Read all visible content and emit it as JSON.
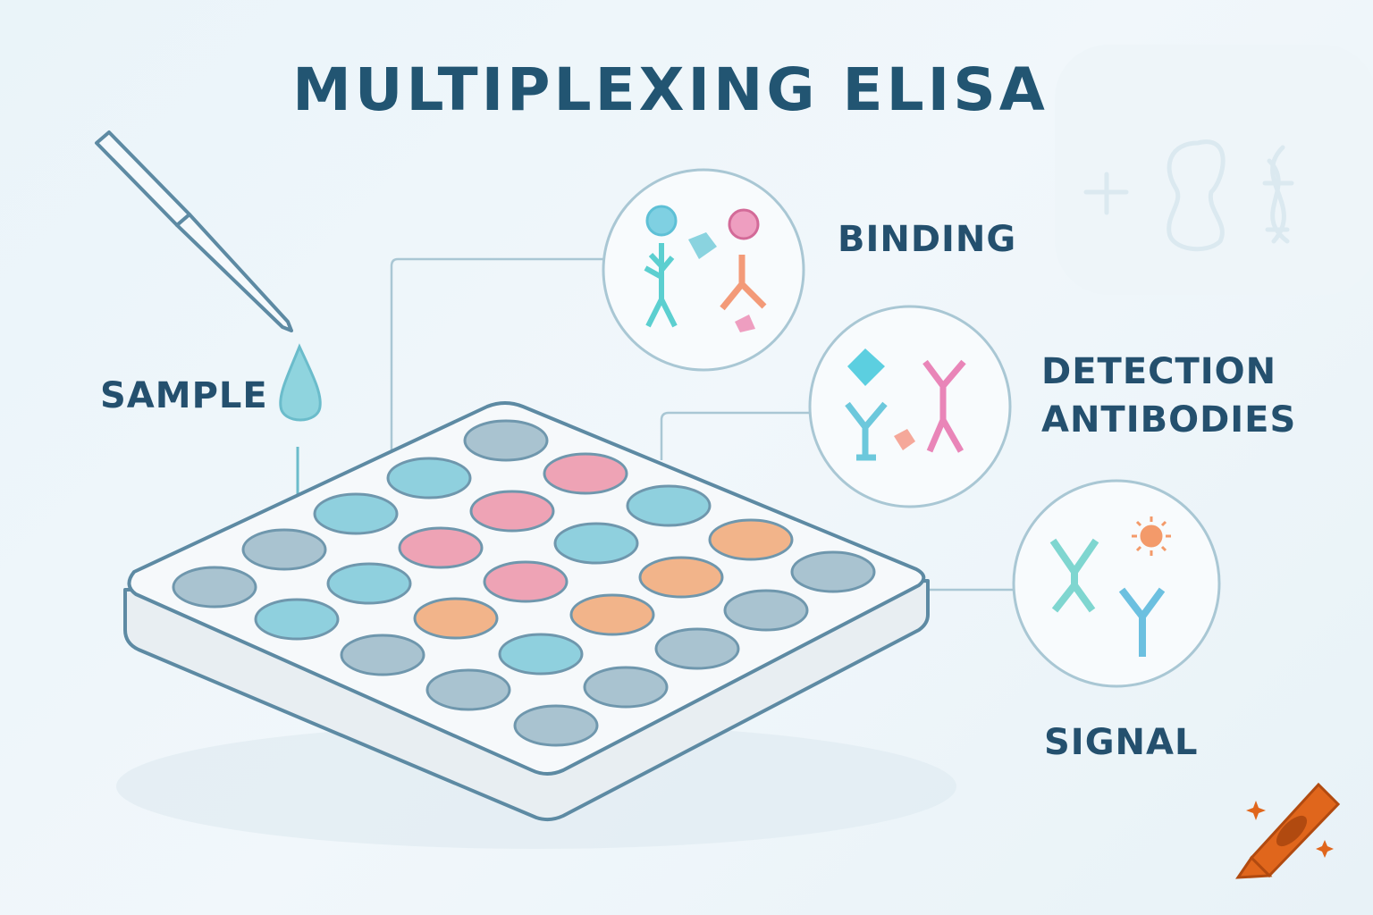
{
  "title": "MULTIPLEXING ELISA",
  "labels": {
    "sample": "SAMPLE",
    "binding": "BINDING",
    "detection_line1": "DETECTION",
    "detection_line2": "ANTIBODIES",
    "signal": "SIGNAL"
  },
  "colors": {
    "text": "#24506e",
    "well_blue": "#8fd0de",
    "well_gray": "#a9c3d0",
    "well_pink": "#eea3b5",
    "well_orange": "#f2b48a",
    "outline": "#5d8aa3",
    "logo": "#e0661c"
  },
  "plate_wells": [
    "gray",
    "blue",
    "pink",
    "blue",
    "pink",
    "blue",
    "gray",
    "pink",
    "blue",
    "orange",
    "gray",
    "blue",
    "pink",
    "orange",
    "gray",
    "blue",
    "orange",
    "orange",
    "gray",
    "gray",
    "blue",
    "gray",
    "gray",
    "gray",
    "gray"
  ],
  "icons": [
    "pipette-icon",
    "droplet-icon",
    "antibody-icon",
    "antigen-icon",
    "sun-signal-icon",
    "plus-icon",
    "cell-icon",
    "dna-icon",
    "crayon-logo-icon"
  ]
}
